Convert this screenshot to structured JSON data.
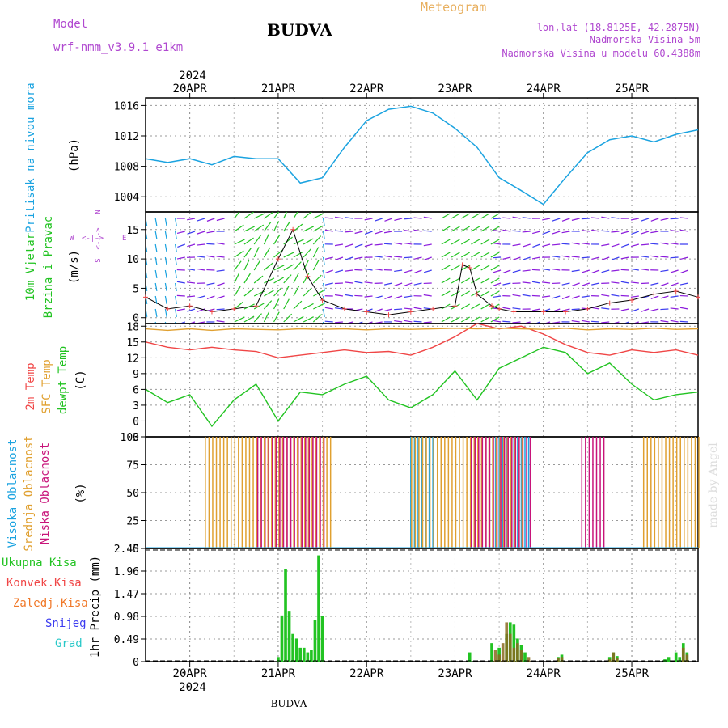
{
  "header": {
    "model_label": "Model",
    "model_name": "wrf-nmm_v3.9.1 e1km",
    "station": "BUDVA",
    "product": "Meteogram",
    "coords": "lon,lat (18.8125E, 42.2875N)",
    "altitude": "Nadmorska Visina 5m",
    "model_altitude": "Nadmorska Visina u modelu 60.4388m",
    "footer_station": "BUDVA",
    "credit": "made by Angel",
    "year": "2024"
  },
  "colors": {
    "pressure": "#1ba3e0",
    "t2m": "#f04646",
    "sfc": "#e0a030",
    "dewpt": "#22c322",
    "high_cloud": "#1ba3e0",
    "mid_cloud": "#e0a030",
    "low_cloud": "#c8147a",
    "precip_total": "#22c322",
    "precip_conv": "#f04646",
    "precip_frozen": "#f07828",
    "precip_snow": "#3c3cf0",
    "precip_graup": "#28c8c8",
    "wind_arrows": [
      "#1ba3e0",
      "#22c322",
      "#8c1cdc",
      "#3c3cf0",
      "#f04646"
    ]
  },
  "chart_data": [
    {
      "type": "line",
      "panel": "pressure",
      "ylabel_rot": "Pritisak na nivou mora",
      "unit": "(hPa)",
      "ylim": [
        1002,
        1017
      ],
      "yticks": [
        "1016",
        "1012",
        "1008",
        "1004"
      ],
      "ytick_values": [
        1016,
        1012,
        1008,
        1004
      ],
      "x_day_labels": [
        "20APR",
        "21APR",
        "22APR",
        "23APR",
        "24APR",
        "25APR"
      ],
      "x_hours": [
        0,
        6,
        12,
        18,
        24,
        30,
        36,
        42,
        48,
        54,
        60,
        66,
        72,
        78,
        84,
        90,
        96,
        102,
        108,
        114,
        120,
        126,
        132,
        138,
        144,
        150
      ],
      "values": [
        1009.0,
        1008.5,
        1009.0,
        1008.2,
        1009.3,
        1009.0,
        1009.0,
        1005.8,
        1006.5,
        1010.5,
        1014.0,
        1015.5,
        1015.9,
        1015.0,
        1013.0,
        1010.5,
        1006.5,
        1004.8,
        1003.0,
        1006.5,
        1009.8,
        1011.5,
        1012.0,
        1011.2,
        1012.2,
        1012.8
      ]
    },
    {
      "type": "line",
      "panel": "wind",
      "ylabel_rot": "10m Vjetar Brzina i Pravac",
      "unit": "(m/s)",
      "ylim": [
        -1,
        18
      ],
      "yticks": [
        "15",
        "10",
        "5",
        "0"
      ],
      "ytick_values": [
        15,
        10,
        5,
        0
      ],
      "compass": [
        "N",
        "S",
        "W",
        "E"
      ],
      "x_hours": [
        0,
        6,
        12,
        18,
        24,
        30,
        36,
        40,
        44,
        48,
        54,
        60,
        66,
        72,
        78,
        84,
        86,
        88,
        90,
        94,
        96,
        100,
        108,
        114,
        120,
        126,
        132,
        138,
        144,
        150
      ],
      "series": [
        {
          "name": "",
          "values": [
            3.5,
            1.5,
            2.0,
            1.0,
            1.5,
            2.0,
            10.0,
            15.0,
            7.0,
            3.0,
            1.5,
            1.0,
            0.5,
            1.0,
            1.5,
            2.0,
            9.0,
            8.5,
            4.0,
            2.0,
            1.5,
            1.0,
            1.0,
            1.0,
            1.5,
            2.5,
            3.0,
            4.0,
            4.5,
            3.5
          ]
        }
      ]
    },
    {
      "type": "line",
      "panel": "temperature",
      "ylabel_rot": [
        "2m Temp",
        "SFC Temp",
        "dewpt Temp"
      ],
      "unit": "(C)",
      "ylim": [
        -3,
        18.5
      ],
      "yticks": [
        "18",
        "15",
        "12",
        "9",
        "6",
        "3",
        "0",
        "-3"
      ],
      "ytick_values": [
        18,
        15,
        12,
        9,
        6,
        3,
        0,
        -3
      ],
      "x_hours": [
        0,
        6,
        12,
        18,
        24,
        30,
        36,
        42,
        48,
        54,
        60,
        66,
        72,
        78,
        84,
        90,
        96,
        102,
        108,
        114,
        120,
        126,
        132,
        138,
        144,
        150
      ],
      "series": [
        {
          "name": "2m Temp",
          "values": [
            15.0,
            14.0,
            13.5,
            14.0,
            13.5,
            13.2,
            12.0,
            12.5,
            13.0,
            13.5,
            13.0,
            13.2,
            12.5,
            14.0,
            16.0,
            18.5,
            17.5,
            18.0,
            16.5,
            14.5,
            13.0,
            12.5,
            13.5,
            13.0,
            13.5,
            12.5
          ]
        },
        {
          "name": "SFC Temp",
          "values": [
            17.5,
            17.2,
            17.5,
            17.2,
            17.5,
            17.4,
            17.3,
            17.5,
            17.4,
            17.5,
            17.3,
            17.5,
            17.4,
            17.5,
            17.6,
            17.5,
            17.6,
            17.5,
            17.4,
            17.6,
            17.3,
            17.5,
            17.4,
            17.6,
            17.4,
            17.5
          ]
        },
        {
          "name": "dewpt Temp",
          "values": [
            6.0,
            3.5,
            5.0,
            -1.0,
            4.0,
            7.0,
            0.0,
            5.5,
            5.0,
            7.0,
            8.5,
            4.0,
            2.5,
            5.0,
            9.5,
            4.0,
            10.0,
            12.0,
            14.0,
            13.0,
            9.0,
            11.0,
            7.0,
            4.0,
            5.0,
            5.5
          ]
        }
      ]
    },
    {
      "type": "bar",
      "panel": "cloud",
      "ylabel_rot": [
        "Visoka Oblacnost",
        "Srednja Oblacnost",
        "Niska Oblacnost"
      ],
      "unit": "(%)",
      "ylim": [
        0,
        100
      ],
      "yticks": [
        "100",
        "75",
        "50",
        "25",
        "0"
      ],
      "ytick_values": [
        100,
        75,
        50,
        25,
        0
      ],
      "series": [
        {
          "name": "Visoka Oblacnost",
          "x_start": [
            72,
            95
          ],
          "x_end": [
            78,
            104
          ],
          "value": 100
        },
        {
          "name": "Srednja Oblacnost",
          "x_start": [
            16,
            72,
            135
          ],
          "x_end": [
            50,
            102,
            150
          ],
          "value": 100
        },
        {
          "name": "Niska Oblacnost",
          "x_start": [
            30,
            88,
            118
          ],
          "x_end": [
            48,
            104,
            124
          ],
          "value": 100
        }
      ]
    },
    {
      "type": "bar",
      "panel": "precip",
      "ylabel_rot": "1hr Precip (mm)",
      "legend": [
        "Ukupna Kisa",
        "Konvek.Kisa",
        "Zaledj.Kisa",
        "Snijeg",
        "Grad"
      ],
      "ylim": [
        0,
        2.45
      ],
      "yticks": [
        "2.45",
        "1.96",
        "1.47",
        "0.98",
        "0.49",
        "0"
      ],
      "ytick_values": [
        2.45,
        1.96,
        1.47,
        0.98,
        0.49,
        0
      ],
      "x_day_labels": [
        "20APR",
        "21APR",
        "22APR",
        "23APR",
        "24APR",
        "25APR"
      ],
      "total": [
        [
          36,
          0.1
        ],
        [
          37,
          1.0
        ],
        [
          38,
          2.0
        ],
        [
          39,
          1.1
        ],
        [
          40,
          0.6
        ],
        [
          41,
          0.5
        ],
        [
          42,
          0.3
        ],
        [
          43,
          0.3
        ],
        [
          44,
          0.2
        ],
        [
          45,
          0.25
        ],
        [
          46,
          0.9
        ],
        [
          47,
          2.3
        ],
        [
          48,
          0.98
        ],
        [
          88,
          0.2
        ],
        [
          94,
          0.4
        ],
        [
          96,
          0.3
        ],
        [
          98,
          0.6
        ],
        [
          99,
          0.85
        ],
        [
          100,
          0.8
        ],
        [
          101,
          0.5
        ],
        [
          102,
          0.35
        ],
        [
          103,
          0.2
        ],
        [
          112,
          0.1
        ],
        [
          113,
          0.15
        ],
        [
          126,
          0.1
        ],
        [
          127,
          0.2
        ],
        [
          128,
          0.12
        ],
        [
          141,
          0.05
        ],
        [
          142,
          0.1
        ],
        [
          144,
          0.2
        ],
        [
          145,
          0.1
        ],
        [
          146,
          0.4
        ],
        [
          147,
          0.2
        ]
      ],
      "convective": [
        [
          95,
          0.25
        ],
        [
          96,
          0.15
        ],
        [
          97,
          0.4
        ],
        [
          98,
          0.85
        ],
        [
          99,
          0.6
        ],
        [
          100,
          0.3
        ],
        [
          101,
          0.4
        ],
        [
          102,
          0.25
        ],
        [
          104,
          0.1
        ],
        [
          112,
          0.08
        ],
        [
          113,
          0.1
        ],
        [
          126,
          0.05
        ],
        [
          127,
          0.2
        ],
        [
          128,
          0.08
        ],
        [
          146,
          0.3
        ],
        [
          147,
          0.15
        ]
      ]
    }
  ]
}
